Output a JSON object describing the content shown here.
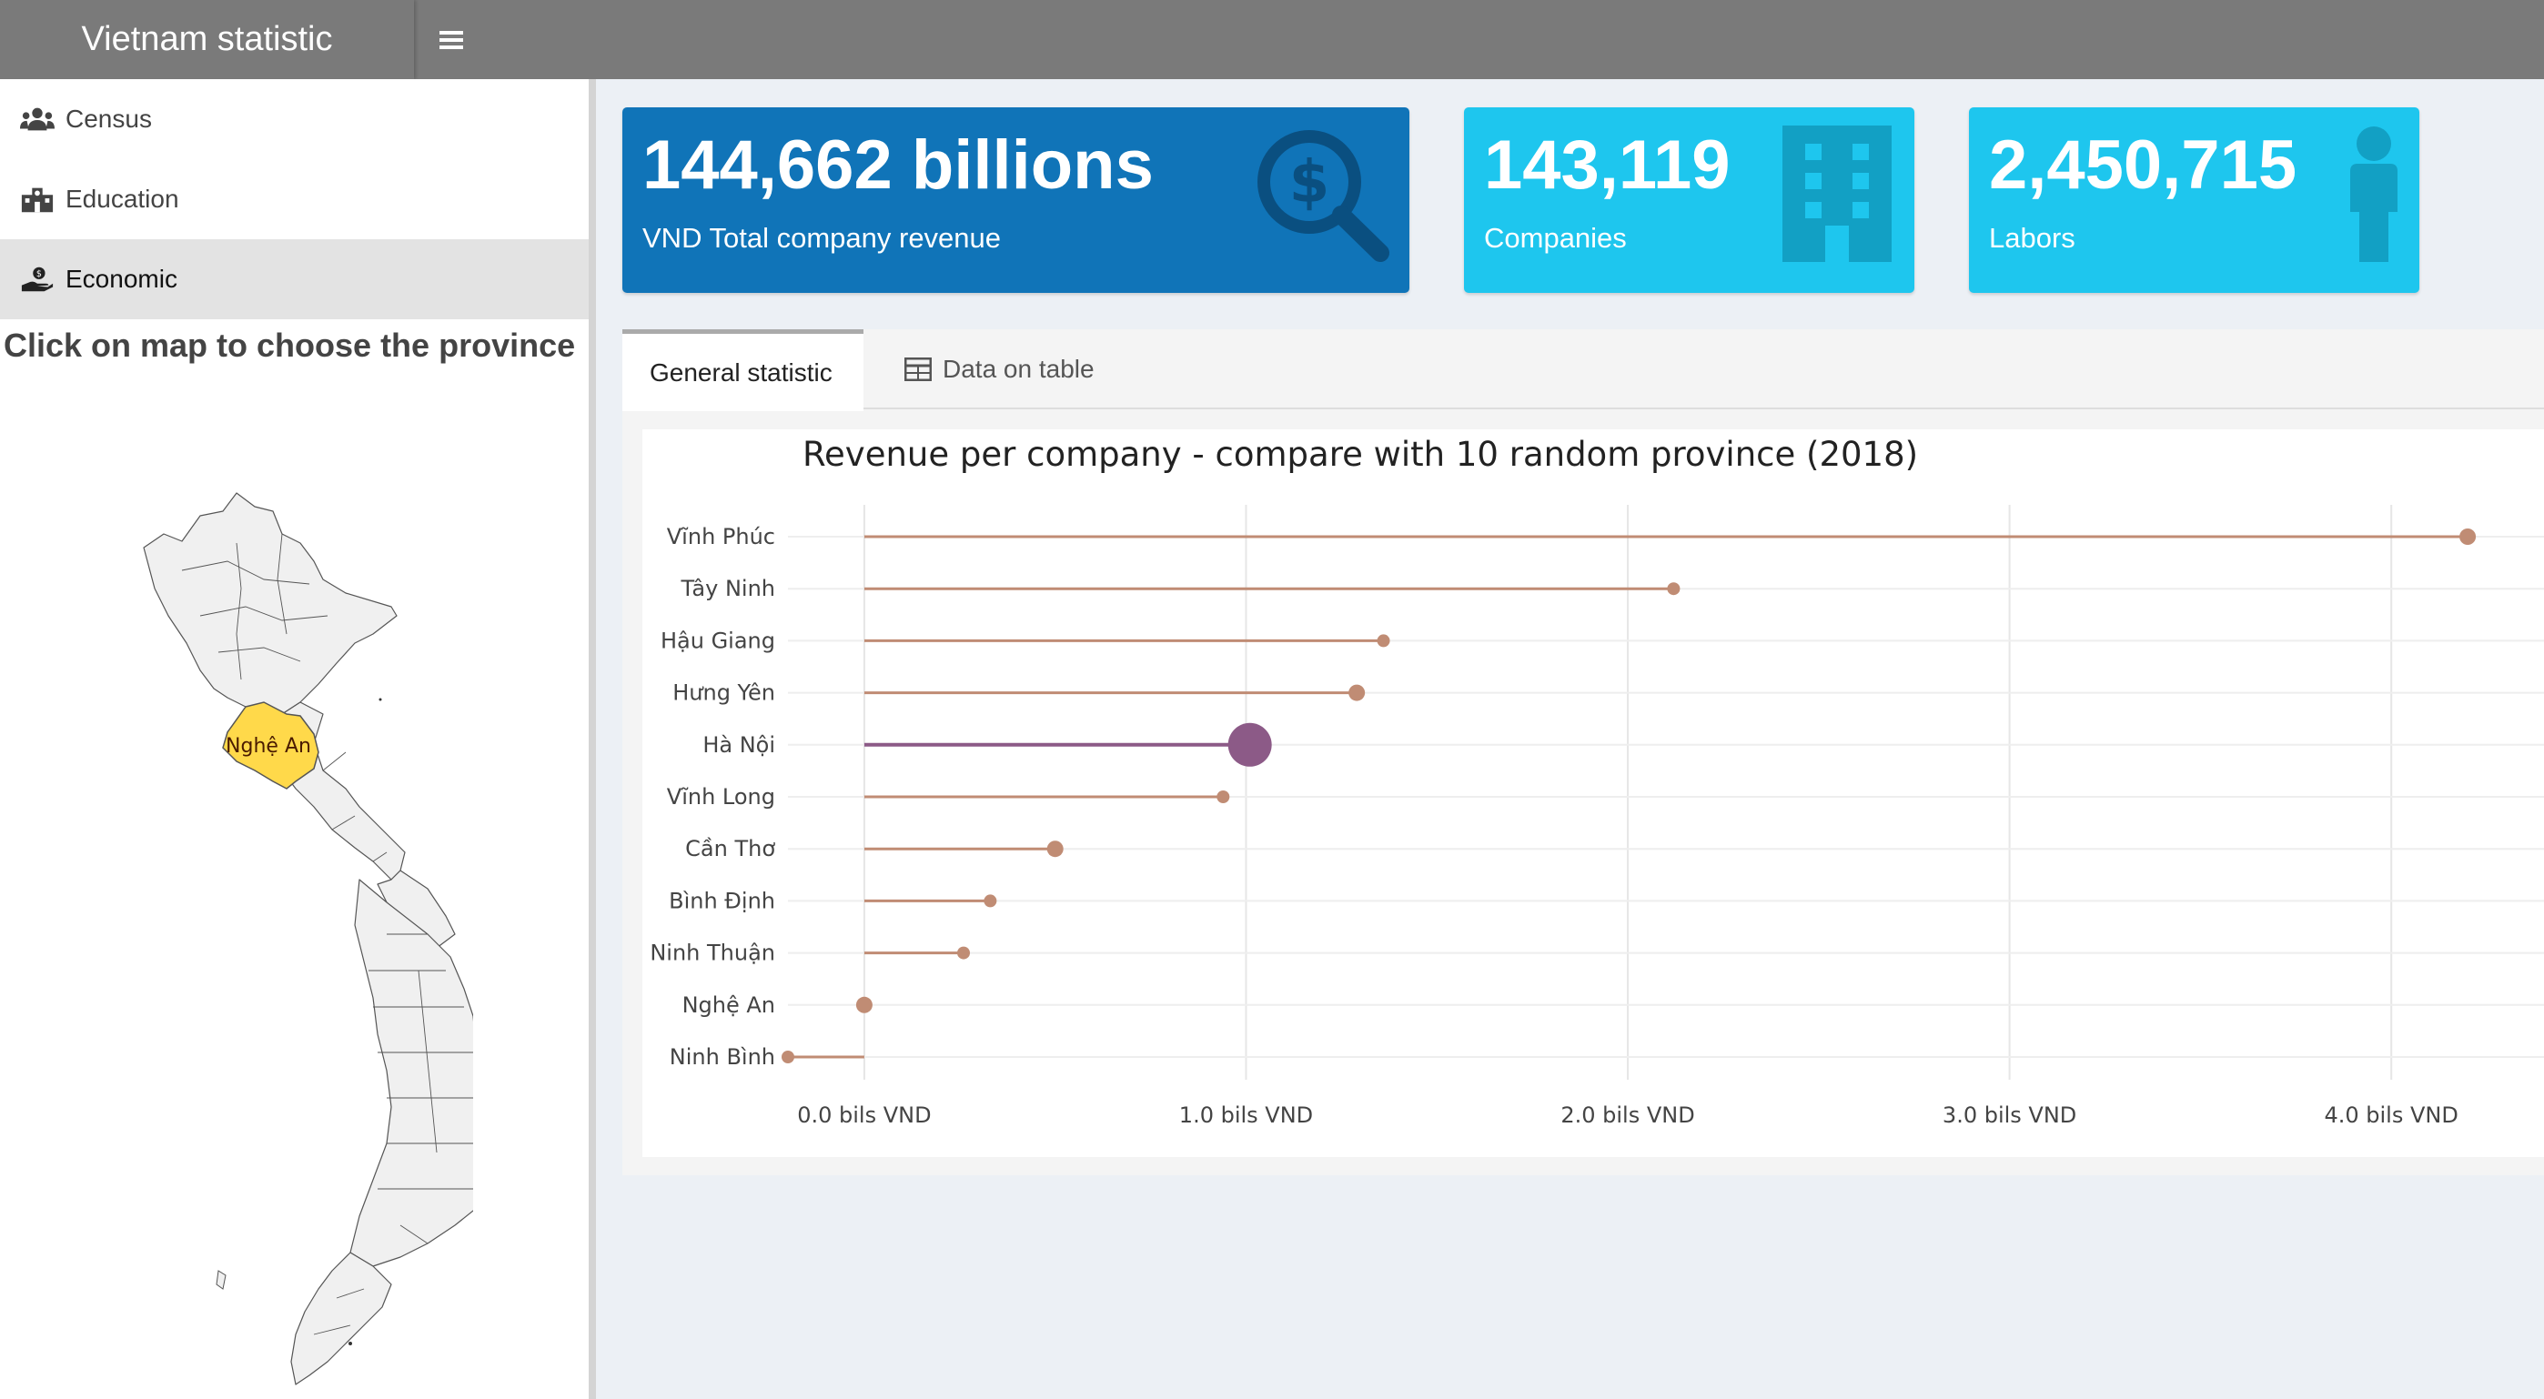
{
  "app": {
    "title": "Vietnam statistic"
  },
  "sidebar": {
    "items": [
      {
        "label": "Census",
        "icon": "users-icon"
      },
      {
        "label": "Education",
        "icon": "school-icon"
      },
      {
        "label": "Economic",
        "icon": "hand-holding-dollar-icon",
        "active": true
      }
    ],
    "instruction": "Click on map to choose the province"
  },
  "map": {
    "selected_label": "Nghệ An",
    "highlight_color": "#ffd94a"
  },
  "value_boxes": [
    {
      "value": "144,662 billions",
      "label": "VND Total company revenue",
      "icon": "search-dollar-icon",
      "color": "#1074b8"
    },
    {
      "value": "143,119",
      "label": "Companies",
      "icon": "building-icon",
      "color": "#1ec6ee"
    },
    {
      "value": "2,450,715",
      "label": "Labors",
      "icon": "person-icon",
      "color": "#1ec6ee"
    }
  ],
  "tabs": [
    {
      "label": "General statistic",
      "active": true
    },
    {
      "label": "Data on table",
      "icon": "table-icon"
    }
  ],
  "chart_data": {
    "type": "lollipop",
    "title": "Revenue per company - compare with 10 random province (2018)",
    "xlabel": "",
    "ylabel": "",
    "xlim": [
      -0.2,
      4.4
    ],
    "highlight": "Hà Nội",
    "colors": {
      "normal": "#c08c74",
      "highlight": "#8c5a87"
    },
    "tick_values": [
      0,
      1,
      2,
      3,
      4
    ],
    "tick_labels": [
      "0.0 bils VND",
      "1.0 bils VND",
      "2.0 bils VND",
      "3.0 bils VND",
      "4.0 bils VND"
    ],
    "categories": [
      "Vĩnh Phúc",
      "Tây Ninh",
      "Hậu Giang",
      "Hưng Yên",
      "Hà Nội",
      "Vĩnh Long",
      "Cần Thơ",
      "Bình Định",
      "Ninh Thuận",
      "Nghệ An",
      "Ninh Bình"
    ],
    "values": [
      4.2,
      2.12,
      1.36,
      1.29,
      1.01,
      0.94,
      0.5,
      0.33,
      0.26,
      0.0,
      -0.2
    ]
  }
}
